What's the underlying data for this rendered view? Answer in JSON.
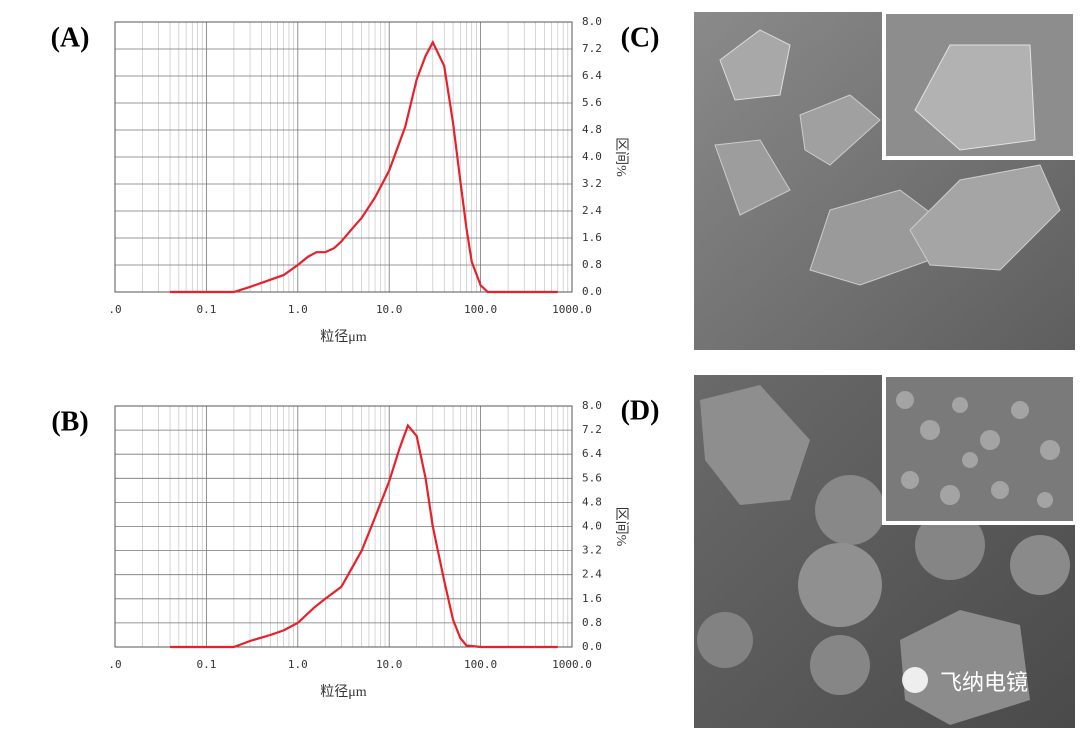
{
  "chart_data": [
    {
      "type": "line",
      "label": "(A)",
      "xlabel": "粒径μm",
      "ylabel": "区间%",
      "log_x": true,
      "grid": true,
      "color": "#e8202a",
      "x": [
        0.04,
        0.1,
        0.2,
        0.3,
        0.4,
        0.7,
        1,
        1.3,
        1.6,
        2,
        2.5,
        3,
        4,
        5,
        7,
        10,
        15,
        20,
        25,
        30,
        40,
        50,
        60,
        70,
        80,
        100,
        120,
        200,
        500,
        700
      ],
      "values": [
        0,
        0,
        0,
        0.15,
        0.27,
        0.5,
        0.8,
        1.05,
        1.18,
        1.18,
        1.3,
        1.5,
        1.9,
        2.2,
        2.8,
        3.6,
        4.9,
        6.3,
        7.0,
        7.4,
        6.7,
        5.0,
        3.3,
        1.9,
        0.9,
        0.2,
        0,
        0,
        0,
        0
      ],
      "xlim": [
        0.01,
        1000
      ],
      "xticks": [
        {
          "value": 0.01,
          "label": ".0"
        },
        0.1,
        {
          "value": 1,
          "label": "1.0"
        },
        {
          "value": 10,
          "label": "10.0"
        },
        {
          "value": 100,
          "label": "100.0"
        },
        {
          "value": 1000,
          "label": "1000.0"
        }
      ],
      "ylim": [
        0,
        8
      ],
      "yticks": [
        {
          "value": 0,
          "label": "0.0"
        },
        0.8,
        1.6,
        2.4,
        3.2,
        {
          "value": 4,
          "label": "4.0"
        },
        4.8,
        5.6,
        6.4,
        7.2,
        {
          "value": 8,
          "label": "8.0"
        }
      ]
    },
    {
      "type": "line",
      "label": "(B)",
      "xlabel": "粒径μm",
      "ylabel": "区间%",
      "log_x": true,
      "grid": true,
      "color": "#e8202a",
      "x": [
        0.04,
        0.1,
        0.2,
        0.3,
        0.5,
        0.7,
        1,
        1.5,
        2,
        3,
        5,
        7,
        10,
        13,
        16,
        20,
        25,
        30,
        40,
        50,
        60,
        70,
        100,
        700
      ],
      "values": [
        0,
        0,
        0,
        0.2,
        0.4,
        0.55,
        0.8,
        1.3,
        1.6,
        2.0,
        3.2,
        4.3,
        5.5,
        6.6,
        7.35,
        7.0,
        5.6,
        4.0,
        2.2,
        0.9,
        0.3,
        0.05,
        0,
        0
      ],
      "xlim": [
        0.01,
        1000
      ],
      "xticks": [
        {
          "value": 0.01,
          "label": ".0"
        },
        0.1,
        {
          "value": 1,
          "label": "1.0"
        },
        {
          "value": 10,
          "label": "10.0"
        },
        {
          "value": 100,
          "label": "100.0"
        },
        {
          "value": 1000,
          "label": "1000.0"
        }
      ],
      "ylim": [
        0,
        8
      ],
      "yticks": [
        {
          "value": 0,
          "label": "0.0"
        },
        0.8,
        1.6,
        2.4,
        3.2,
        {
          "value": 4,
          "label": "4.0"
        },
        4.8,
        5.6,
        6.4,
        7.2,
        {
          "value": 8,
          "label": "8.0"
        }
      ]
    }
  ],
  "images": [
    {
      "label": "(C)"
    },
    {
      "label": "(D)"
    }
  ],
  "watermark": "飞纳电镜"
}
